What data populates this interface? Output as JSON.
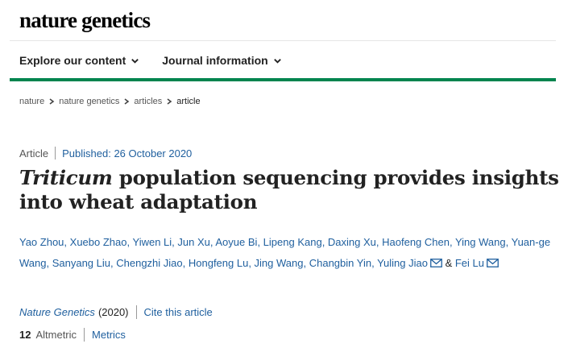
{
  "masthead": {
    "logo_text": "nature genetics"
  },
  "nav": {
    "items": [
      {
        "label": "Explore our content"
      },
      {
        "label": "Journal information"
      }
    ]
  },
  "breadcrumb": {
    "items": [
      "nature",
      "nature genetics",
      "articles",
      "article"
    ]
  },
  "article": {
    "type": "Article",
    "published": "Published: 26 October 2020",
    "title_italic": "Triticum",
    "title_rest": " population sequencing provides insights into wheat adaptation",
    "authors": [
      "Yao Zhou",
      "Xuebo Zhao",
      "Yiwen Li",
      "Jun Xu",
      "Aoyue Bi",
      "Lipeng Kang",
      "Daxing Xu",
      "Haofeng Chen",
      "Ying Wang",
      "Yuan-ge Wang",
      "Sanyang Liu",
      "Chengzhi Jiao",
      "Hongfeng Lu",
      "Jing Wang",
      "Changbin Yin",
      "Yuling Jiao"
    ],
    "author_last": "Fei Lu",
    "ampersand": "&",
    "separator": ",",
    "journal_name": "Nature Genetics",
    "year": "(2020)",
    "cite_label": "Cite this article",
    "altmetric_value": "12",
    "altmetric_label": "Altmetric",
    "metrics_label": "Metrics"
  },
  "colors": {
    "accent_green": "#00844e",
    "link_blue": "#1f5f9e"
  },
  "icons": {
    "nav_chevron": "chevron-down-icon",
    "breadcrumb_sep": "chevron-right-icon",
    "mail": "mail-icon"
  }
}
